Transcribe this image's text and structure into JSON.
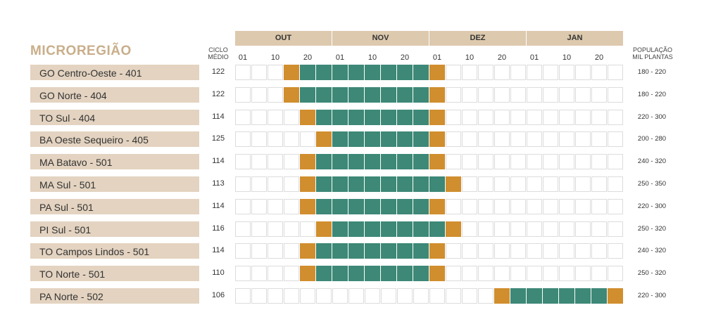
{
  "chart_data": {
    "type": "table",
    "title": "MICROREGIÃO",
    "cycle_header": [
      "CICLO",
      "MÉDIO"
    ],
    "population_header": [
      "POPULAÇÃO",
      "MIL PLANTAS"
    ],
    "months": [
      "OUT",
      "NOV",
      "DEZ",
      "JAN"
    ],
    "tick_labels": [
      "01",
      "10",
      "20"
    ],
    "cells_per_month": 6,
    "legend_colors": {
      "sowing_edge": "#d08e2e",
      "sowing_core": "#3d8877",
      "header": "#ddc9ad",
      "label_bg": "#e3d3c0"
    },
    "rows": [
      {
        "name": "GO Centro-Oeste - 401",
        "cycle": "122",
        "population": "180 - 220",
        "start": 3,
        "end": 12
      },
      {
        "name": "GO Norte - 404",
        "cycle": "122",
        "population": "180 - 220",
        "start": 3,
        "end": 12
      },
      {
        "name": "TO Sul - 404",
        "cycle": "114",
        "population": "220 - 300",
        "start": 4,
        "end": 12
      },
      {
        "name": "BA Oeste Sequeiro - 405",
        "cycle": "125",
        "population": "200 - 280",
        "start": 5,
        "end": 12
      },
      {
        "name": "MA Batavo - 501",
        "cycle": "114",
        "population": "240 - 320",
        "start": 4,
        "end": 12
      },
      {
        "name": "MA Sul - 501",
        "cycle": "113",
        "population": "250 - 350",
        "start": 4,
        "end": 13
      },
      {
        "name": "PA Sul - 501",
        "cycle": "114",
        "population": "220 - 300",
        "start": 4,
        "end": 12
      },
      {
        "name": "PI Sul - 501",
        "cycle": "116",
        "population": "250 - 320",
        "start": 5,
        "end": 13
      },
      {
        "name": "TO Campos Lindos - 501",
        "cycle": "114",
        "population": "240 - 320",
        "start": 4,
        "end": 12
      },
      {
        "name": "TO Norte - 501",
        "cycle": "110",
        "population": "250 - 320",
        "start": 4,
        "end": 12
      },
      {
        "name": "PA Norte - 502",
        "cycle": "106",
        "population": "220 - 300",
        "start": 16,
        "end": 23
      }
    ]
  }
}
